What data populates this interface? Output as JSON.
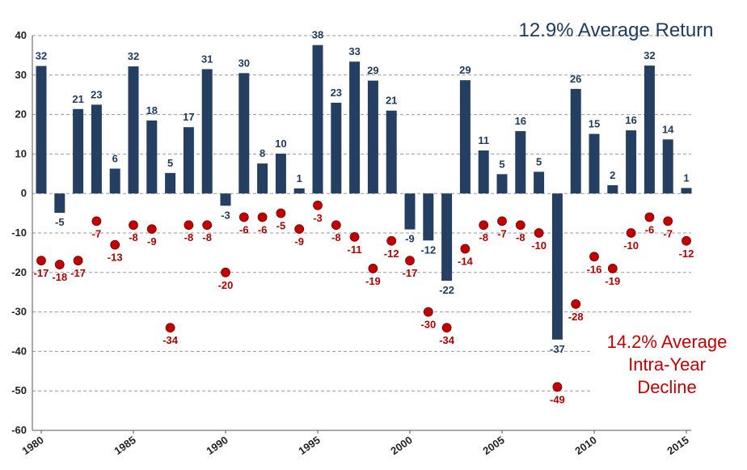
{
  "chart_data": {
    "type": "bar",
    "title": "",
    "xlabel": "",
    "ylabel": "",
    "ylim": [
      -60,
      40
    ],
    "yticks": [
      40,
      30,
      20,
      10,
      0,
      -10,
      -20,
      -30,
      -40,
      -50,
      -60
    ],
    "xticks": [
      1980,
      1985,
      1990,
      1995,
      2000,
      2005,
      2010,
      2015
    ],
    "grid": true,
    "years": [
      1980,
      1981,
      1982,
      1983,
      1984,
      1985,
      1986,
      1987,
      1988,
      1989,
      1990,
      1991,
      1992,
      1993,
      1994,
      1995,
      1996,
      1997,
      1998,
      1999,
      2000,
      2001,
      2002,
      2003,
      2004,
      2005,
      2006,
      2007,
      2008,
      2009,
      2010,
      2011,
      2012,
      2013,
      2014,
      2015
    ],
    "series": [
      {
        "kind": "bar",
        "color": "#253f63",
        "values": [
          32.3,
          -4.9,
          21.4,
          22.5,
          6.3,
          32.2,
          18.5,
          5.2,
          16.8,
          31.5,
          -3.1,
          30.5,
          7.6,
          10.1,
          1.3,
          37.6,
          23.0,
          33.4,
          28.6,
          21.0,
          -9.1,
          -11.9,
          -22.1,
          28.7,
          10.9,
          4.9,
          15.8,
          5.5,
          -37.0,
          26.5,
          15.1,
          2.1,
          16.0,
          32.4,
          13.7,
          1.4
        ],
        "labels": [
          "32",
          "-5",
          "21",
          "23",
          "6",
          "32",
          "18",
          "5",
          "17",
          "31",
          "-3",
          "30",
          "8",
          "10",
          "1",
          "38",
          "23",
          "33",
          "29",
          "21",
          "-9",
          "-12",
          "-22",
          "29",
          "11",
          "5",
          "16",
          "5",
          "-37",
          "26",
          "15",
          "2",
          "16",
          "32",
          "14",
          "1"
        ]
      },
      {
        "kind": "scatter",
        "color": "#c00000",
        "values": [
          -17,
          -18,
          -17,
          -7,
          -13,
          -8,
          -9,
          -34,
          -8,
          -8,
          -20,
          -6,
          -6,
          -5,
          -9,
          -3,
          -8,
          -11,
          -19,
          -12,
          -17,
          -30,
          -34,
          -14,
          -8,
          -7,
          -8,
          -10,
          -49,
          -28,
          -16,
          -19,
          -10,
          -6,
          -7,
          -12
        ],
        "labels": [
          "-17",
          "-18",
          "-17",
          "-7",
          "-13",
          "-8",
          "-9",
          "-34",
          "-8",
          "-8",
          "-20",
          "-6",
          "-6",
          "-5",
          "-9",
          "-3",
          "-8",
          "-11",
          "-19",
          "-12",
          "-17",
          "-30",
          "-34",
          "-14",
          "-8",
          "-7",
          "-8",
          "-10",
          "-49",
          "-28",
          "-16",
          "-19",
          "-10",
          "-6",
          "-7",
          "-12"
        ]
      }
    ],
    "annotations": {
      "average_return": "12.9% Average Return",
      "average_decline_line1": "14.2% Average",
      "average_decline_line2": "Intra-Year",
      "average_decline_line3": "Decline"
    }
  }
}
